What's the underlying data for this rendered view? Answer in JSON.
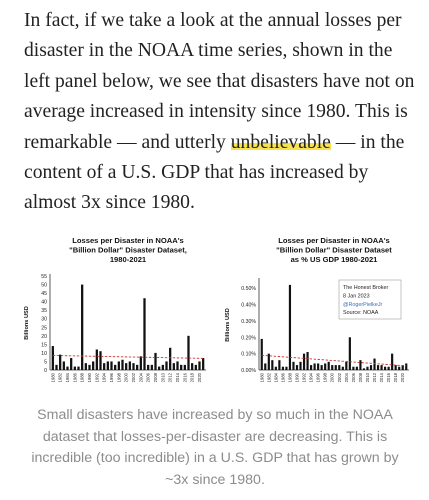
{
  "article": {
    "paragraph_before": "In fact, if we take a look at the annual losses per disaster in the NOAA time series, shown in the left panel below, we see that disasters have not on average increased in intensity since 1980. This is remarkable — and utterly ",
    "highlighted": "unbelievable",
    "paragraph_after": " — in the content of a U.S. GDP that has increased by almost 3x since 1980.",
    "caption": "Small disasters have increased by so much in the NOAA dataset that losses-per-disaster are decreasing. This is incredible (too incredible) in a U.S. GDP that has grown by ~3x since 1980.",
    "colors": {
      "text": "#222222",
      "highlight": "#f7e34f",
      "caption": "#8c8c8c",
      "trend": "#d0312d",
      "bars": "#111111"
    }
  },
  "chart_data": [
    {
      "type": "bar",
      "title_lines": [
        "Losses per Disaster in NOAA's",
        "\"Billion Dollar\" Disaster Dataset,",
        "1980-2021"
      ],
      "ylabel": "Billions USD",
      "ylim": [
        0,
        55
      ],
      "yticks": [
        "0",
        "5",
        "10",
        "15",
        "20",
        "25",
        "30",
        "35",
        "40",
        "45",
        "50",
        "55"
      ],
      "ytick_values": [
        0,
        5,
        10,
        15,
        20,
        25,
        30,
        35,
        40,
        45,
        50,
        55
      ],
      "xtick_labels": [
        "1980",
        "1982",
        "1984",
        "1986",
        "1988",
        "1990",
        "1992",
        "1994",
        "1996",
        "1998",
        "2000",
        "2002",
        "2004",
        "2006",
        "2008",
        "2010",
        "2012",
        "2014",
        "2016",
        "2018",
        "2020"
      ],
      "x": [
        1980,
        1981,
        1982,
        1983,
        1984,
        1985,
        1986,
        1987,
        1988,
        1989,
        1990,
        1991,
        1992,
        1993,
        1994,
        1995,
        1996,
        1997,
        1998,
        1999,
        2000,
        2001,
        2002,
        2003,
        2004,
        2005,
        2006,
        2007,
        2008,
        2009,
        2010,
        2011,
        2012,
        2013,
        2014,
        2015,
        2016,
        2017,
        2018,
        2019,
        2020,
        2021
      ],
      "values": [
        14,
        3,
        9,
        5,
        2,
        7,
        2,
        2,
        50,
        4,
        3,
        5,
        12,
        11,
        4,
        5,
        5,
        3,
        5,
        6,
        4,
        5,
        4,
        3,
        8,
        42,
        3,
        3,
        10,
        2,
        3,
        5,
        13,
        4,
        5,
        3,
        3,
        20,
        4,
        3,
        5,
        7
      ],
      "trend": [
        8.5,
        6.8
      ],
      "annotation_lines": []
    },
    {
      "type": "bar",
      "title_lines": [
        "Losses per Disaster in NOAA's",
        "\"Billion Dollar\" Disaster Dataset",
        "as % US GDP 1980-2021"
      ],
      "ylabel": "Billions USD",
      "ylim": [
        0,
        0.55
      ],
      "yticks": [
        "0.00%",
        "0.10%",
        "0.20%",
        "0.30%",
        "0.40%",
        "0.50%"
      ],
      "ytick_values": [
        0,
        0.1,
        0.2,
        0.3,
        0.4,
        0.5
      ],
      "xtick_labels": [
        "1980",
        "1982",
        "1984",
        "1986",
        "1988",
        "1990",
        "1992",
        "1994",
        "1996",
        "1998",
        "2000",
        "2002",
        "2004",
        "2006",
        "2008",
        "2010",
        "2012",
        "2014",
        "2016",
        "2018",
        "2020"
      ],
      "x": [
        1980,
        1981,
        1982,
        1983,
        1984,
        1985,
        1986,
        1987,
        1988,
        1989,
        1990,
        1991,
        1992,
        1993,
        1994,
        1995,
        1996,
        1997,
        1998,
        1999,
        2000,
        2001,
        2002,
        2003,
        2004,
        2005,
        2006,
        2007,
        2008,
        2009,
        2010,
        2011,
        2012,
        2013,
        2014,
        2015,
        2016,
        2017,
        2018,
        2019,
        2020,
        2021
      ],
      "values": [
        0.19,
        0.04,
        0.1,
        0.06,
        0.02,
        0.06,
        0.02,
        0.02,
        0.52,
        0.05,
        0.03,
        0.05,
        0.1,
        0.11,
        0.03,
        0.04,
        0.04,
        0.03,
        0.04,
        0.05,
        0.03,
        0.03,
        0.03,
        0.02,
        0.05,
        0.2,
        0.02,
        0.02,
        0.06,
        0.01,
        0.02,
        0.03,
        0.07,
        0.03,
        0.03,
        0.02,
        0.02,
        0.1,
        0.03,
        0.02,
        0.03,
        0.04
      ],
      "trend": [
        0.09,
        0.025
      ],
      "annotation_lines": [
        "The Honest Broker",
        "8 Jan 2023",
        "@RogerPielkeJr",
        "Source: NOAA"
      ],
      "annotation_link_index": 2
    }
  ]
}
